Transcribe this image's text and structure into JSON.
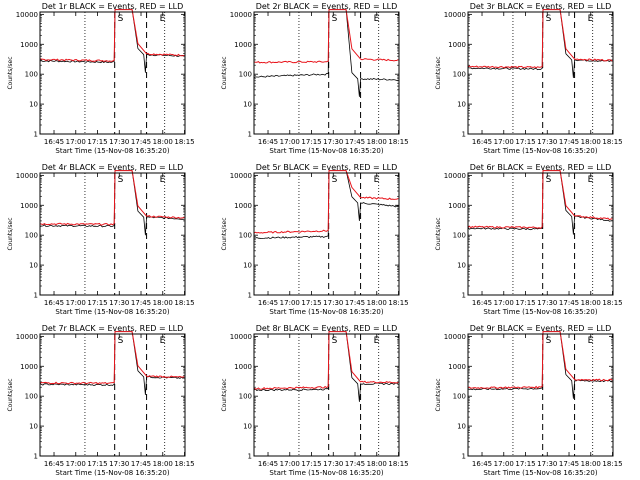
{
  "chart_data": {
    "type": "line",
    "panel_grid": "3x3",
    "xlabel": "Start Time (15-Nov-08 16:35:20)",
    "ylabel": "Counts/sec",
    "x_tick_labels": [
      "16:45",
      "17:00",
      "17:15",
      "17:30",
      "17:45",
      "18:00",
      "18:15"
    ],
    "x_ticks_min": [
      9.667,
      24.667,
      39.667,
      54.667,
      69.667,
      84.667,
      99.667
    ],
    "xlim_min": [
      0,
      100
    ],
    "y_scale": "log",
    "ylim": [
      1,
      12000
    ],
    "y_tick_labels": [
      "1",
      "10",
      "100",
      "1000",
      "10000"
    ],
    "y_ticks": [
      1,
      10,
      100,
      1000,
      10000
    ],
    "markers": [
      "S",
      "E"
    ],
    "series_colors": {
      "events": "#000000",
      "lld": "#e8161d"
    },
    "panels": [
      {
        "title": "Det 1r BLACK = Events, RED = LLD",
        "start_min": 0,
        "slew_min": [
          51.5,
          73.5
        ],
        "saa_min": [
          31,
          86
        ],
        "event_base": [
          280,
          250
        ],
        "lld_base": [
          310,
          280
        ],
        "event_after": [
          450,
          400
        ],
        "lld_after": [
          480,
          430
        ]
      },
      {
        "title": "Det 2r BLACK = Events, RED = LLD",
        "start_min": 0,
        "slew_min": [
          51.5,
          73.5
        ],
        "saa_min": [
          31,
          86
        ],
        "event_base": [
          80,
          100
        ],
        "lld_base": [
          250,
          260
        ],
        "event_after": [
          70,
          65
        ],
        "lld_after": [
          320,
          290
        ]
      },
      {
        "title": "Det 3r BLACK = Events, RED = LLD",
        "start_min": 0,
        "slew_min": [
          51.5,
          73.5
        ],
        "saa_min": [
          31,
          86
        ],
        "event_base": [
          160,
          150
        ],
        "lld_base": [
          180,
          170
        ],
        "event_after": [
          300,
          270
        ],
        "lld_after": [
          320,
          290
        ]
      },
      {
        "title": "Det 4r BLACK = Events, RED = LLD",
        "start_min": 0,
        "slew_min": [
          51.5,
          73.5
        ],
        "saa_min": [
          31,
          86
        ],
        "event_base": [
          210,
          200
        ],
        "lld_base": [
          240,
          230
        ],
        "event_after": [
          400,
          350
        ],
        "lld_after": [
          430,
          380
        ]
      },
      {
        "title": "Det 5r BLACK = Events, RED = LLD",
        "start_min": 0,
        "slew_min": [
          51.5,
          73.5
        ],
        "saa_min": [
          31,
          86
        ],
        "event_base": [
          80,
          90
        ],
        "lld_base": [
          120,
          140
        ],
        "event_after": [
          1200,
          900
        ],
        "lld_after": [
          1800,
          1600
        ]
      },
      {
        "title": "Det 6r BLACK = Events, RED = LLD",
        "start_min": 0,
        "slew_min": [
          51.5,
          73.5
        ],
        "saa_min": [
          31,
          86
        ],
        "event_base": [
          170,
          160
        ],
        "lld_base": [
          190,
          180
        ],
        "event_after": [
          420,
          300
        ],
        "lld_after": [
          440,
          340
        ]
      },
      {
        "title": "Det 7r BLACK = Events, RED = LLD",
        "start_min": 0,
        "slew_min": [
          51.5,
          73.5
        ],
        "saa_min": [
          31,
          86
        ],
        "event_base": [
          250,
          240
        ],
        "lld_base": [
          280,
          270
        ],
        "event_after": [
          440,
          400
        ],
        "lld_after": [
          470,
          430
        ]
      },
      {
        "title": "Det 8r BLACK = Events, RED = LLD",
        "start_min": 0,
        "slew_min": [
          51.5,
          73.5
        ],
        "saa_min": [
          31,
          86
        ],
        "event_base": [
          160,
          170
        ],
        "lld_base": [
          180,
          200
        ],
        "event_after": [
          260,
          260
        ],
        "lld_after": [
          300,
          290
        ]
      },
      {
        "title": "Det 9r BLACK = Events, RED = LLD",
        "start_min": 0,
        "slew_min": [
          51.5,
          73.5
        ],
        "saa_min": [
          31,
          86
        ],
        "event_base": [
          170,
          180
        ],
        "lld_base": [
          190,
          200
        ],
        "event_after": [
          330,
          320
        ],
        "lld_after": [
          360,
          350
        ]
      }
    ]
  }
}
